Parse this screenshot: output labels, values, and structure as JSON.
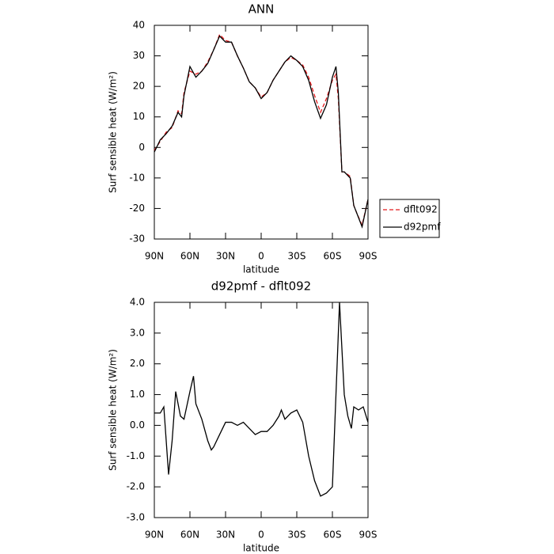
{
  "chart_data": [
    {
      "type": "line",
      "title": "ANN",
      "xlabel": "latitude",
      "ylabel": "Surf sensible heat (W/m²)",
      "xlim": [
        90,
        -90
      ],
      "xticks": [
        {
          "value": 90,
          "label": "90N"
        },
        {
          "value": 60,
          "label": "60N"
        },
        {
          "value": 30,
          "label": "30N"
        },
        0,
        {
          "value": -30,
          "label": "30S"
        },
        {
          "value": -60,
          "label": "60S"
        },
        {
          "value": -90,
          "label": "90S"
        }
      ],
      "ylim": [
        -30,
        40
      ],
      "yticks": [
        -30,
        -20,
        -10,
        0,
        10,
        20,
        30,
        40
      ],
      "legend": "right",
      "x": [
        90,
        85,
        80,
        75,
        70,
        67,
        65,
        60,
        55,
        50,
        45,
        40,
        35,
        30,
        25,
        20,
        15,
        10,
        5,
        0,
        -5,
        -10,
        -15,
        -20,
        -25,
        -30,
        -35,
        -40,
        -45,
        -50,
        -55,
        -60,
        -63,
        -65,
        -68,
        -70,
        -75,
        -78,
        -80,
        -85,
        -90
      ],
      "series": [
        {
          "name": "dflt092",
          "color": "#e31a1c",
          "style": "dashed",
          "values": [
            -1,
            2,
            5,
            6.5,
            12,
            11,
            18,
            25,
            24,
            25,
            28,
            32,
            37,
            35,
            34.5,
            30,
            26,
            21.5,
            19.5,
            16.5,
            18,
            22,
            25,
            28,
            29.5,
            28.5,
            27,
            23,
            17,
            11.5,
            16,
            22,
            24,
            16,
            -8,
            -8,
            -9.5,
            -19,
            -21,
            -25.5,
            -17
          ]
        },
        {
          "name": "d92pmf",
          "color": "#000000",
          "style": "solid",
          "values": [
            -1.5,
            2.5,
            4.5,
            7,
            11.5,
            10,
            17,
            26.5,
            23,
            25,
            27.5,
            32,
            36.5,
            34.5,
            34.5,
            30,
            26,
            21.5,
            19.5,
            16,
            18,
            22,
            25,
            28,
            30,
            28.5,
            26.5,
            22,
            15,
            9.5,
            14,
            23,
            26.5,
            18,
            -8,
            -8,
            -10,
            -19,
            -21,
            -26,
            -17
          ]
        }
      ]
    },
    {
      "type": "line",
      "title": "d92pmf - dflt092",
      "xlabel": "latitude",
      "ylabel": "Surf sensible heat (W/m²)",
      "xlim": [
        90,
        -90
      ],
      "xticks": [
        {
          "value": 90,
          "label": "90N"
        },
        {
          "value": 60,
          "label": "60N"
        },
        {
          "value": 30,
          "label": "30N"
        },
        0,
        {
          "value": -30,
          "label": "30S"
        },
        {
          "value": -60,
          "label": "60S"
        },
        {
          "value": -90,
          "label": "90S"
        }
      ],
      "ylim": [
        -3,
        4
      ],
      "yticks": [
        {
          "value": -3,
          "label": "-3.0"
        },
        {
          "value": -2,
          "label": "-2.0"
        },
        {
          "value": -1,
          "label": "-1.0"
        },
        {
          "value": 0,
          "label": "0.0"
        },
        {
          "value": 1,
          "label": "1.0"
        },
        {
          "value": 2,
          "label": "2.0"
        },
        {
          "value": 3,
          "label": "3.0"
        },
        {
          "value": 4,
          "label": "4.0"
        }
      ],
      "color": "#000000",
      "x": [
        90,
        85,
        82,
        78,
        75,
        72,
        68,
        65,
        60,
        57,
        55,
        50,
        45,
        42,
        40,
        35,
        30,
        25,
        20,
        15,
        10,
        5,
        0,
        -5,
        -10,
        -15,
        -17,
        -20,
        -25,
        -30,
        -35,
        -40,
        -45,
        -50,
        -55,
        -60,
        -63,
        -66,
        -70,
        -73,
        -76,
        -78,
        -82,
        -86,
        -90
      ],
      "values": [
        0.4,
        0.4,
        0.6,
        -1.6,
        -0.5,
        1.1,
        0.3,
        0.2,
        1.1,
        1.6,
        0.7,
        0.2,
        -0.5,
        -0.8,
        -0.7,
        -0.3,
        0.1,
        0.1,
        0.0,
        0.1,
        -0.1,
        -0.3,
        -0.2,
        -0.2,
        0.0,
        0.3,
        0.5,
        0.2,
        0.4,
        0.5,
        0.1,
        -1.0,
        -1.8,
        -2.3,
        -2.2,
        -2.0,
        1.0,
        4.0,
        1.0,
        0.3,
        -0.1,
        0.6,
        0.5,
        0.6,
        0.1
      ]
    }
  ]
}
